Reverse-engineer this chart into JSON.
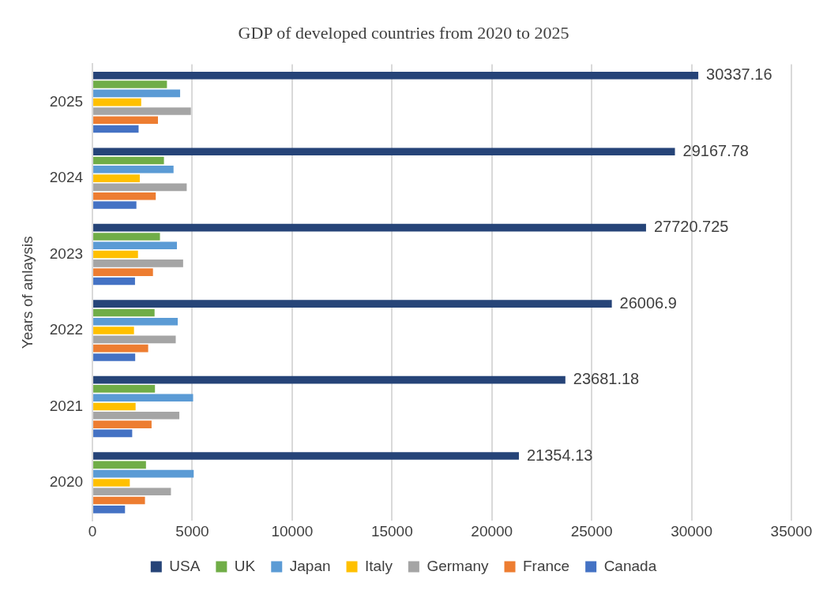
{
  "chart_data": {
    "type": "bar",
    "orientation": "horizontal",
    "title": "GDP of developed countries from 2020 to 2025",
    "ylabel": "Years of anlaysis",
    "categories": [
      "2025",
      "2024",
      "2023",
      "2022",
      "2021",
      "2020"
    ],
    "series": [
      {
        "name": "USA",
        "color": "#264478",
        "values": [
          30337.16,
          29167.78,
          27720.725,
          26006.9,
          23681.18,
          21354.13
        ],
        "value_labels": [
          "30337.16",
          "29167.78",
          "27720.725",
          "26006.9",
          "23681.18",
          "21354.13"
        ]
      },
      {
        "name": "UK",
        "color": "#70ad47",
        "values": [
          3730,
          3580,
          3380,
          3110,
          3130,
          2680
        ]
      },
      {
        "name": "Japan",
        "color": "#5b9bd5",
        "values": [
          4390,
          4060,
          4230,
          4270,
          5040,
          5070
        ]
      },
      {
        "name": "Italy",
        "color": "#ffc000",
        "values": [
          2440,
          2370,
          2280,
          2080,
          2160,
          1870
        ]
      },
      {
        "name": "Germany",
        "color": "#a5a5a5",
        "values": [
          4930,
          4720,
          4540,
          4170,
          4350,
          3930
        ]
      },
      {
        "name": "France",
        "color": "#ed7d31",
        "values": [
          3280,
          3170,
          3030,
          2790,
          2960,
          2630
        ]
      },
      {
        "name": "Canada",
        "color": "#4472c4",
        "values": [
          2310,
          2200,
          2130,
          2140,
          1990,
          1630
        ]
      }
    ],
    "xlim": [
      0,
      35000
    ],
    "xticks": [
      0,
      5000,
      10000,
      15000,
      20000,
      25000,
      30000,
      35000
    ],
    "grid": "x",
    "legend": "bottom"
  }
}
